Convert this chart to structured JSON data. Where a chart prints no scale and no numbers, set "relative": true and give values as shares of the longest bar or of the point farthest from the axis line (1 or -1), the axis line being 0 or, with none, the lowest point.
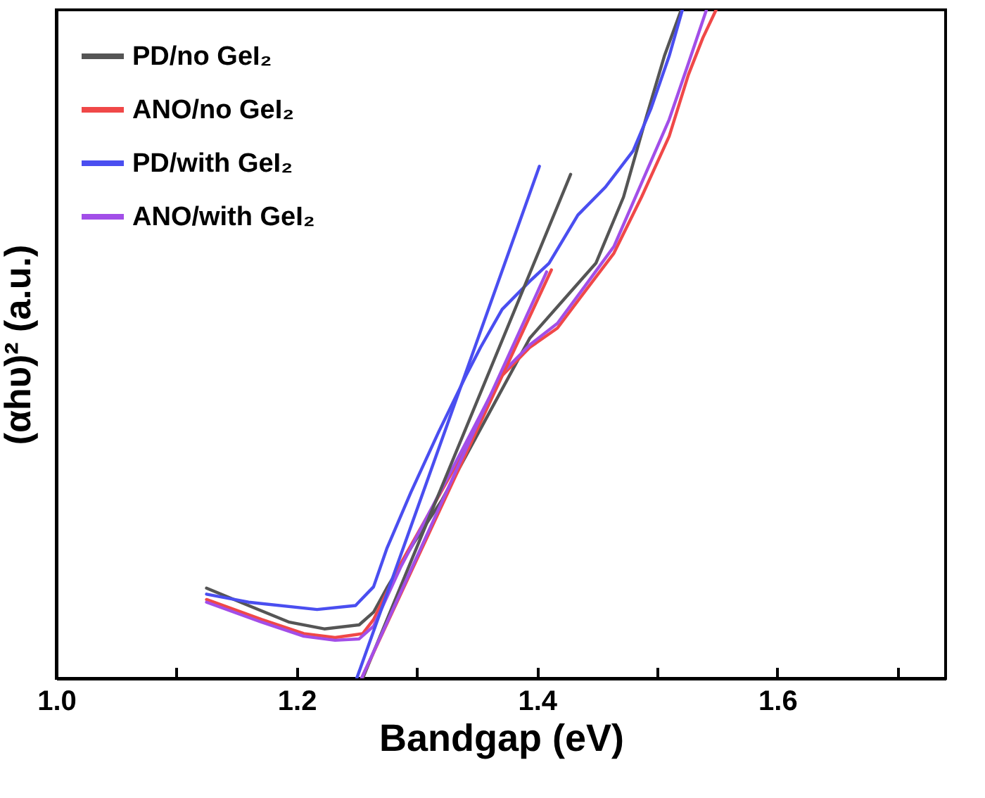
{
  "chart_data": {
    "type": "line",
    "relative": true,
    "xlabel": "Bandgap (eV)",
    "ylabel": "(αhυ)² (a.u.)",
    "xlim": [
      1.0,
      1.74
    ],
    "xticks": [
      {
        "value": 1.0,
        "label": "1.0"
      },
      {
        "value": 1.1,
        "label": null
      },
      {
        "value": 1.2,
        "label": "1.2"
      },
      {
        "value": 1.3,
        "label": null
      },
      {
        "value": 1.4,
        "label": "1.4"
      },
      {
        "value": 1.5,
        "label": null
      },
      {
        "value": 1.6,
        "label": "1.6"
      },
      {
        "value": 1.7,
        "label": null
      }
    ],
    "legend": "top left",
    "grid": false,
    "line_style": "solid",
    "marker": "none",
    "series": [
      {
        "name": "PD/no GeI₂",
        "color": "#555555",
        "x": [
          1.125,
          1.16,
          1.194,
          1.223,
          1.252,
          1.264,
          1.275,
          1.298,
          1.321,
          1.356,
          1.394,
          1.422,
          1.449,
          1.472,
          1.491,
          1.506,
          1.52
        ],
        "values": [
          0.135,
          0.109,
          0.084,
          0.074,
          0.08,
          0.099,
          0.135,
          0.204,
          0.267,
          0.383,
          0.509,
          0.566,
          0.621,
          0.72,
          0.84,
          0.931,
          1.0
        ]
      },
      {
        "name": "ANO/no GeI₂",
        "color": "#f04848",
        "x": [
          1.125,
          1.171,
          1.206,
          1.232,
          1.255,
          1.264,
          1.287,
          1.318,
          1.348,
          1.371,
          1.394,
          1.417,
          1.44,
          1.464,
          1.487,
          1.51,
          1.526,
          1.538,
          1.549
        ],
        "values": [
          0.118,
          0.088,
          0.067,
          0.061,
          0.067,
          0.088,
          0.173,
          0.272,
          0.368,
          0.453,
          0.495,
          0.524,
          0.579,
          0.636,
          0.72,
          0.811,
          0.903,
          0.958,
          1.0
        ]
      },
      {
        "name": "PD/with GeI₂",
        "color": "#4a4ef0",
        "x": [
          1.125,
          1.16,
          1.217,
          1.249,
          1.264,
          1.275,
          1.295,
          1.318,
          1.341,
          1.353,
          1.371,
          1.394,
          1.41,
          1.434,
          1.457,
          1.48,
          1.495,
          1.51,
          1.521
        ],
        "values": [
          0.126,
          0.114,
          0.103,
          0.109,
          0.137,
          0.194,
          0.278,
          0.368,
          0.453,
          0.495,
          0.552,
          0.594,
          0.621,
          0.693,
          0.735,
          0.789,
          0.853,
          0.931,
          1.0
        ]
      },
      {
        "name": "ANO/with GeI₂",
        "color": "#a24ee8",
        "x": [
          1.125,
          1.171,
          1.206,
          1.232,
          1.252,
          1.264,
          1.287,
          1.318,
          1.348,
          1.371,
          1.394,
          1.417,
          1.44,
          1.464,
          1.487,
          1.51,
          1.526,
          1.541
        ],
        "values": [
          0.114,
          0.084,
          0.063,
          0.057,
          0.059,
          0.078,
          0.168,
          0.274,
          0.377,
          0.457,
          0.499,
          0.531,
          0.587,
          0.646,
          0.741,
          0.836,
          0.92,
          1.0
        ]
      },
      {
        "type": "line",
        "color": "#555555",
        "x": [
          1.255,
          1.428
        ],
        "values": [
          0,
          0.754
        ]
      },
      {
        "type": "line",
        "color": "#f04848",
        "x": [
          1.254,
          1.412
        ],
        "values": [
          0,
          0.611
        ]
      },
      {
        "type": "line",
        "color": "#4a4ef0",
        "x": [
          1.25,
          1.402
        ],
        "values": [
          0,
          0.766
        ]
      },
      {
        "type": "line",
        "color": "#a24ee8",
        "x": [
          1.254,
          1.408
        ],
        "values": [
          0,
          0.608
        ]
      }
    ]
  }
}
